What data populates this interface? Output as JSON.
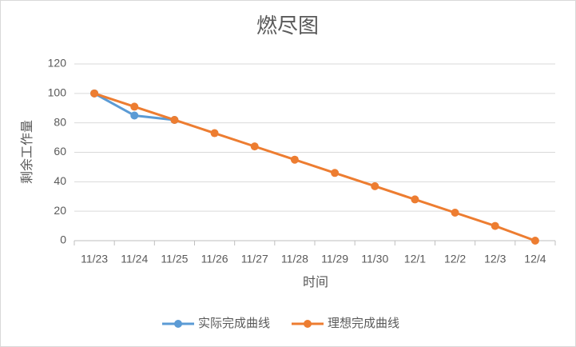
{
  "chart_data": {
    "type": "line",
    "title": "燃尽图",
    "x_label": "时间",
    "y_label": "剩余工作量",
    "categories": [
      "11/23",
      "11/24",
      "11/25",
      "11/26",
      "11/27",
      "11/28",
      "11/29",
      "11/30",
      "12/1",
      "12/2",
      "12/3",
      "12/4"
    ],
    "series": [
      {
        "name": "实际完成曲线",
        "color": "#5b9bd5",
        "values": [
          100,
          85,
          82,
          null,
          null,
          null,
          null,
          null,
          null,
          null,
          null,
          null
        ]
      },
      {
        "name": "理想完成曲线",
        "color": "#ed7d31",
        "values": [
          100,
          91,
          82,
          73,
          64,
          55,
          46,
          37,
          28,
          19,
          10,
          0
        ]
      }
    ],
    "ylim": [
      0,
      120
    ],
    "yticks": [
      0,
      20,
      40,
      60,
      80,
      100,
      120
    ],
    "grid": true,
    "legend": "bottom"
  }
}
